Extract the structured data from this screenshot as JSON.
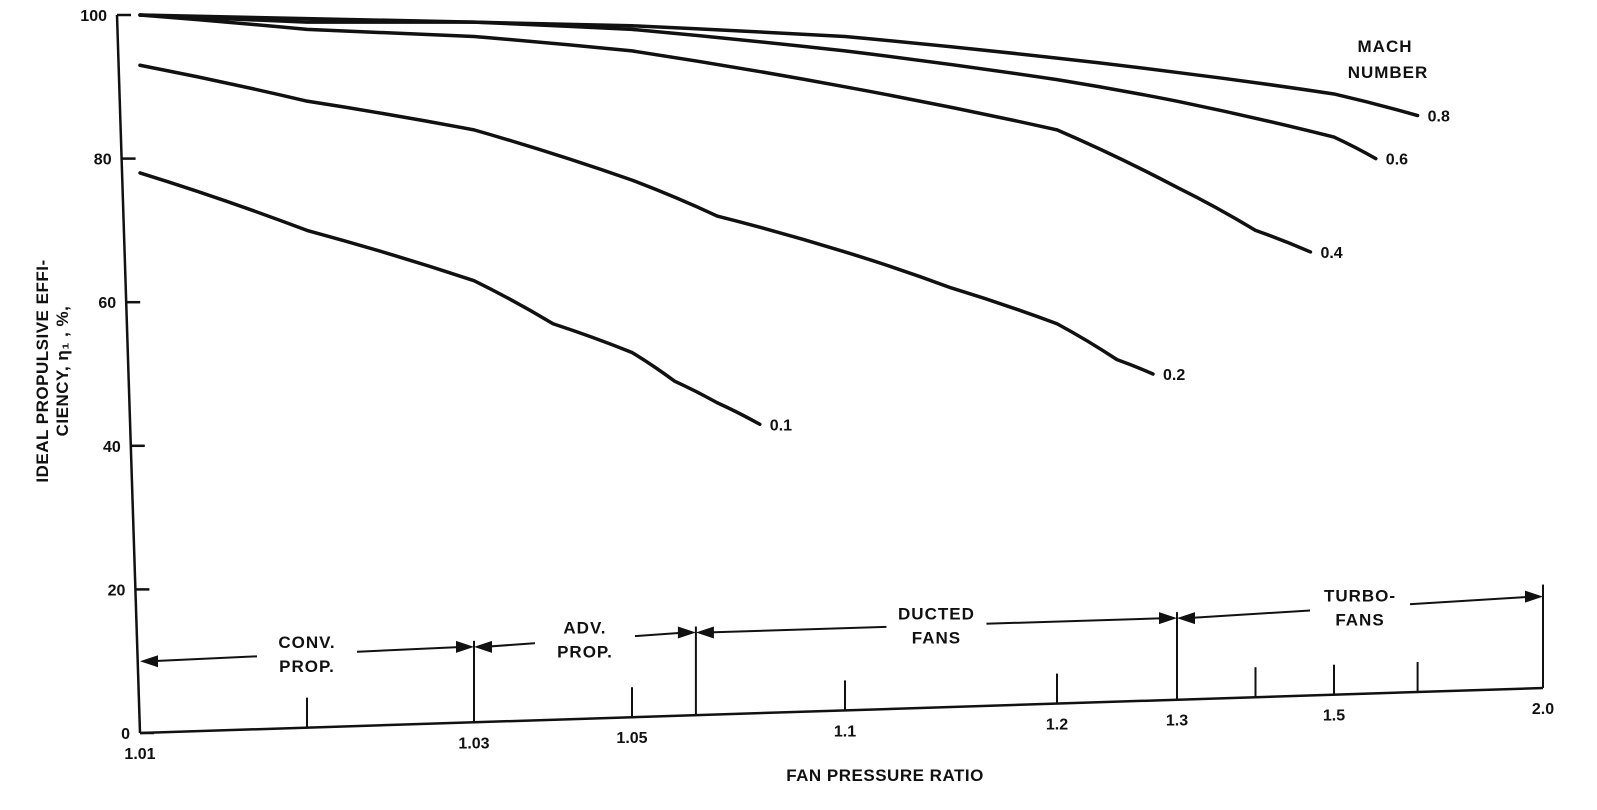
{
  "chart_data": {
    "type": "line",
    "xlabel": "FAN PRESSURE RATIO",
    "ylabel_lines": [
      "IDEAL PROPULSIVE EFFI-",
      "CIENCY, η₁ , %,"
    ],
    "y_ticks": [
      "0",
      "20",
      "40",
      "60",
      "80",
      "100"
    ],
    "ylim": [
      0,
      100
    ],
    "x_ticks": [
      "1.01",
      "1.03",
      "1.05",
      "1.1",
      "1.2",
      "1.3",
      "1.5",
      "2.0"
    ],
    "x_tick_values": [
      1.01,
      1.03,
      1.05,
      1.1,
      1.2,
      1.3,
      1.5,
      2.0
    ],
    "xlim": [
      1.01,
      2.0
    ],
    "legend_title_lines": [
      "MACH",
      "NUMBER"
    ],
    "series": [
      {
        "name": "0.1",
        "x": [
          1.01,
          1.02,
          1.03,
          1.04,
          1.05,
          1.06,
          1.07,
          1.08
        ],
        "y": [
          78,
          70,
          63,
          57,
          53,
          49,
          46,
          43
        ]
      },
      {
        "name": "0.2",
        "x": [
          1.01,
          1.02,
          1.03,
          1.05,
          1.07,
          1.1,
          1.15,
          1.2,
          1.25,
          1.28
        ],
        "y": [
          93,
          88,
          84,
          77,
          72,
          67,
          62,
          57,
          52,
          50
        ]
      },
      {
        "name": "0.4",
        "x": [
          1.01,
          1.02,
          1.03,
          1.05,
          1.1,
          1.2,
          1.3,
          1.4,
          1.47
        ],
        "y": [
          100,
          98,
          97,
          95,
          90,
          84,
          76,
          70,
          67
        ]
      },
      {
        "name": "0.6",
        "x": [
          1.01,
          1.02,
          1.03,
          1.05,
          1.1,
          1.2,
          1.3,
          1.5,
          1.6
        ],
        "y": [
          100,
          99,
          99,
          98,
          95,
          91,
          88,
          83,
          80
        ]
      },
      {
        "name": "0.8",
        "x": [
          1.01,
          1.02,
          1.03,
          1.05,
          1.1,
          1.2,
          1.3,
          1.5,
          1.7
        ],
        "y": [
          100,
          99.5,
          99,
          98.5,
          97,
          94,
          92,
          89,
          86
        ]
      }
    ],
    "regions": [
      {
        "lines": [
          "CONV.",
          "PROP."
        ],
        "x_start": 1.01,
        "x_end": 1.03,
        "level": 10
      },
      {
        "lines": [
          "ADV.",
          "PROP."
        ],
        "x_start": 1.03,
        "x_end": 1.065,
        "level": 12
      },
      {
        "lines": [
          "DUCTED",
          "FANS"
        ],
        "x_start": 1.065,
        "x_end": 1.3,
        "level": 14
      },
      {
        "lines": [
          "TURBO-",
          "FANS"
        ],
        "x_start": 1.3,
        "x_end": 2.0,
        "level": 16
      }
    ],
    "minor_tick_x": [
      1.02,
      1.05,
      1.1,
      1.2,
      1.3,
      1.4,
      1.5,
      1.7
    ],
    "grid": false,
    "legend": "top-right"
  }
}
